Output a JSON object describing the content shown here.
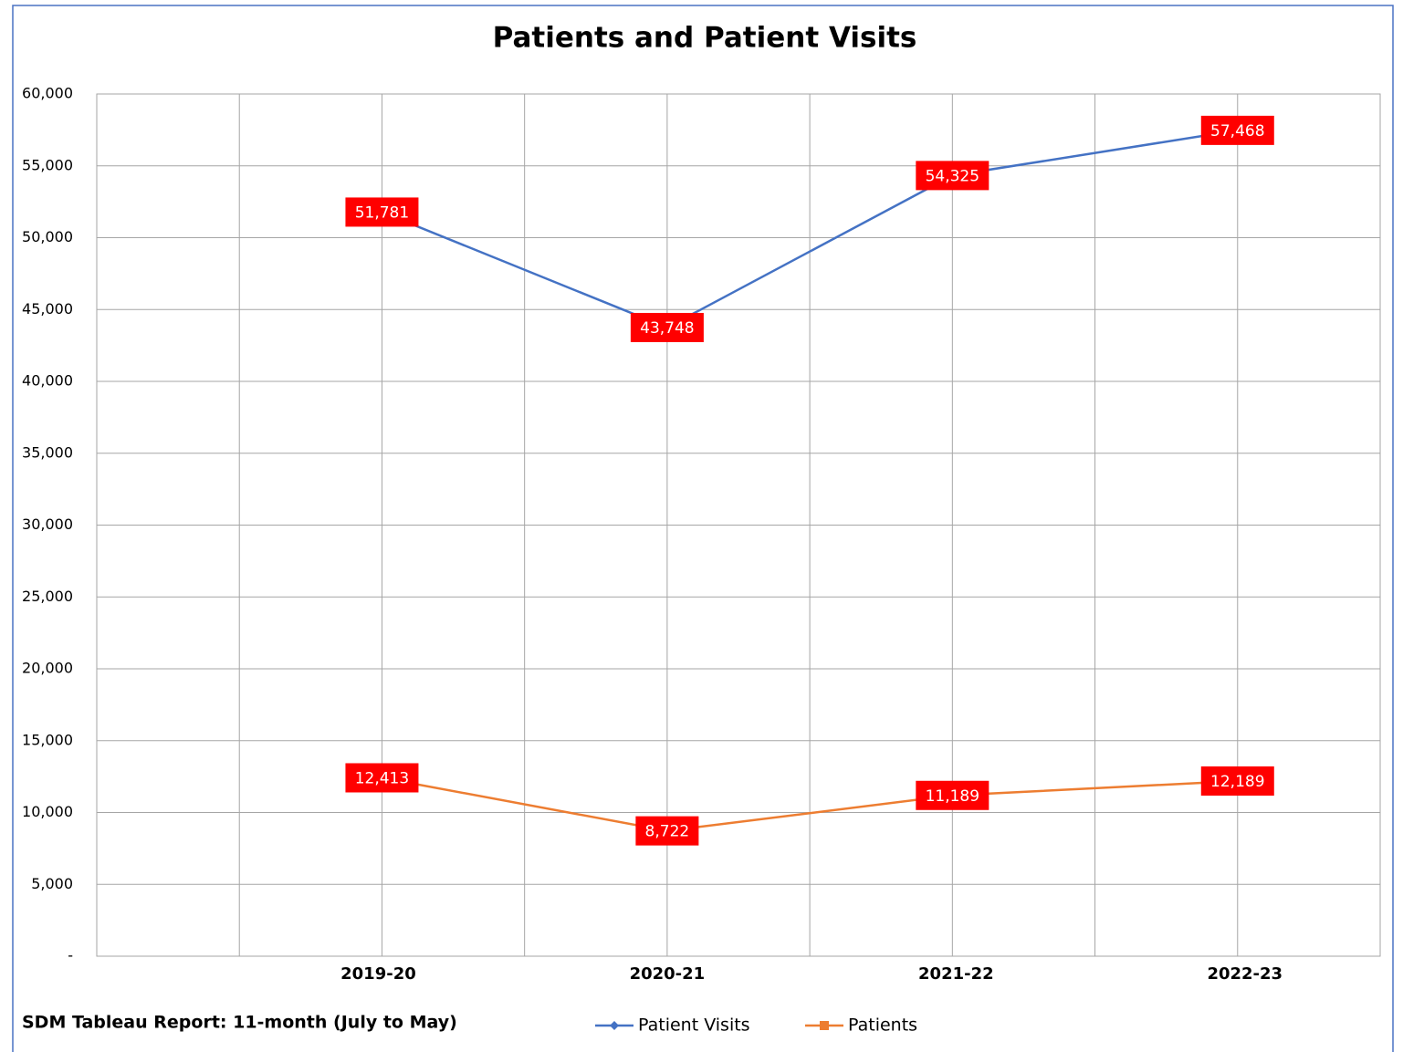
{
  "chart_data": {
    "type": "line",
    "title": "Patients and Patient Visits",
    "categories": [
      "2019-20",
      "2020-21",
      "2021-22",
      "2022-23"
    ],
    "series": [
      {
        "name": "Patient Visits",
        "color": "#4472c4",
        "values": [
          51781,
          43748,
          54325,
          57468
        ],
        "value_labels": [
          "51,781",
          "43,748",
          "54,325",
          "57,468"
        ]
      },
      {
        "name": "Patients",
        "color": "#ed7d31",
        "values": [
          12413,
          8722,
          11189,
          12189
        ],
        "value_labels": [
          "12,413",
          "8,722",
          "11,189",
          "12,189"
        ]
      }
    ],
    "ylim": [
      0,
      60000
    ],
    "yticks": [
      {
        "value": 0,
        "label": "-"
      },
      {
        "value": 5000,
        "label": "5,000"
      },
      {
        "value": 10000,
        "label": "10,000"
      },
      {
        "value": 15000,
        "label": "15,000"
      },
      {
        "value": 20000,
        "label": "20,000"
      },
      {
        "value": 25000,
        "label": "25,000"
      },
      {
        "value": 30000,
        "label": "30,000"
      },
      {
        "value": 35000,
        "label": "35,000"
      },
      {
        "value": 40000,
        "label": "40,000"
      },
      {
        "value": 45000,
        "label": "45,000"
      },
      {
        "value": 50000,
        "label": "50,000"
      },
      {
        "value": 55000,
        "label": "55,000"
      },
      {
        "value": 60000,
        "label": "60,000"
      }
    ],
    "grid": true,
    "label_color": "#ff0000",
    "note": "SDM Tableau Report: 11-month (July to May)",
    "legend": "bottom"
  }
}
